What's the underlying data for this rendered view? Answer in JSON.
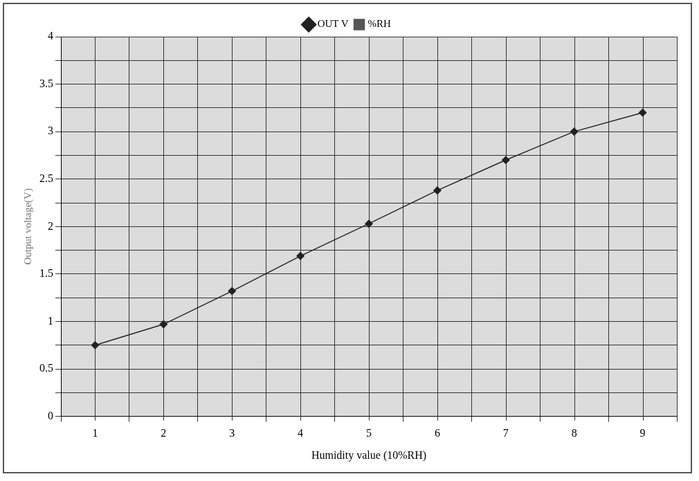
{
  "chart_data": {
    "type": "line",
    "xlabel": "Humidity value (10%RH)",
    "ylabel": "Output voltage(V)",
    "categories": [
      "1",
      "2",
      "3",
      "4",
      "5",
      "6",
      "7",
      "8",
      "9"
    ],
    "series": [
      {
        "name": "OUT V",
        "color": "#222222",
        "marker": "diamond",
        "values": [
          0.75,
          0.97,
          1.32,
          1.69,
          2.03,
          2.38,
          2.7,
          3.0,
          3.2
        ]
      },
      {
        "name": "%RH",
        "color": "#555555",
        "marker": "square",
        "values": [
          null,
          null,
          null,
          null,
          null,
          null,
          null,
          null,
          null
        ]
      }
    ],
    "ylim": [
      0,
      4
    ],
    "yticks": [
      0,
      {
        "value": 0.25,
        "label": null
      },
      0.5,
      {
        "value": 0.75,
        "label": null
      },
      1,
      {
        "value": 1.25,
        "label": null
      },
      1.5,
      {
        "value": 1.75,
        "label": null
      },
      2,
      {
        "value": 2.25,
        "label": null
      },
      2.5,
      {
        "value": 2.75,
        "label": null
      },
      3,
      {
        "value": 3.25,
        "label": null
      },
      3.5,
      {
        "value": 3.75,
        "label": null
      },
      4
    ],
    "grid": true,
    "legend": "top",
    "line_style": "solid"
  }
}
